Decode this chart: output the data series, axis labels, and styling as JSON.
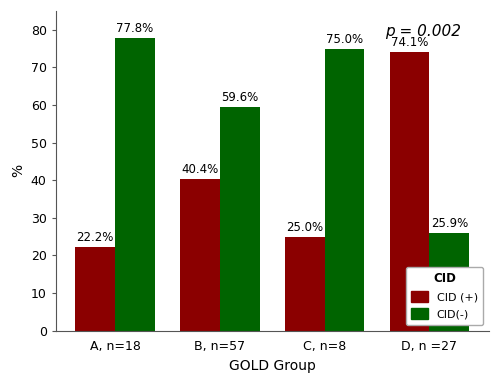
{
  "groups": [
    "A, n=18",
    "B, n=57",
    "C, n=8",
    "D, n =27"
  ],
  "cid_plus": [
    22.2,
    40.4,
    25.0,
    74.1
  ],
  "cid_minus": [
    77.8,
    59.6,
    75.0,
    25.9
  ],
  "cid_plus_labels": [
    "22.2%",
    "40.4%",
    "25.0%",
    "74.1%"
  ],
  "cid_minus_labels": [
    "77.8%",
    "59.6%",
    "75.0%",
    "25.9%"
  ],
  "color_plus": "#8B0000",
  "color_minus": "#006400",
  "bar_width": 0.38,
  "ylim": [
    0,
    85
  ],
  "yticks": [
    0,
    10,
    20,
    30,
    40,
    50,
    60,
    70,
    80
  ],
  "ylabel": "%",
  "xlabel": "GOLD Group",
  "pvalue_text": "p = 0.002",
  "legend_title": "CID",
  "legend_labels": [
    "CID (+)",
    "CID(-)"
  ],
  "background_color": "#ffffff",
  "label_fontsize": 8.5,
  "axis_fontsize": 10,
  "tick_fontsize": 9,
  "spine_color": "#555555"
}
